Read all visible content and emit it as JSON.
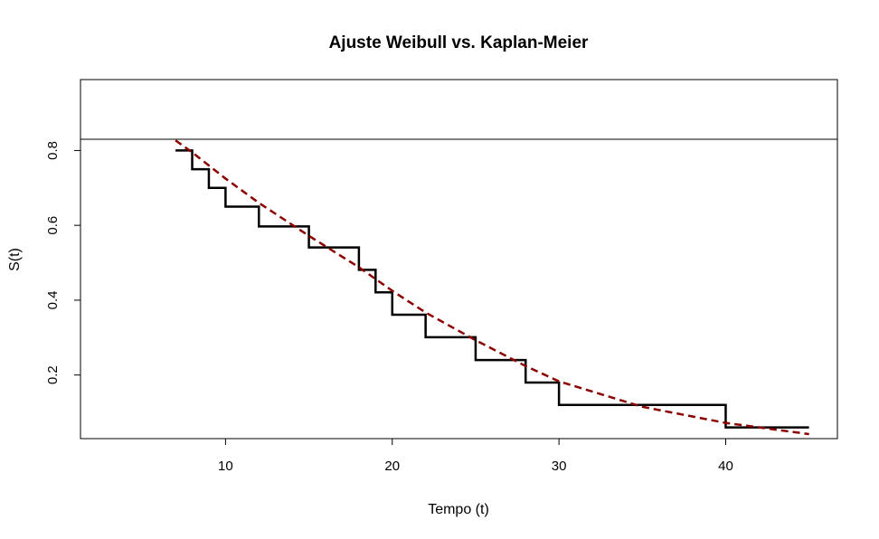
{
  "chart_data": {
    "type": "line",
    "title": "Ajuste Weibull vs. Kaplan-Meier",
    "xlabel": "Tempo (t)",
    "ylabel": "S(t)",
    "xlim": [
      1.3,
      46.7
    ],
    "ylim": [
      0.03,
      0.83
    ],
    "xticks": [
      10,
      20,
      30,
      40
    ],
    "yticks": [
      0.2,
      0.4,
      0.6,
      0.8
    ],
    "grid": false,
    "legend": "none",
    "series": [
      {
        "style": "step",
        "color": "#000000",
        "x": [
          7,
          8,
          9,
          10,
          12,
          15,
          18,
          19,
          20,
          22,
          25,
          28,
          30,
          40,
          45
        ],
        "y": [
          0.8,
          0.75,
          0.7,
          0.65,
          0.597,
          0.541,
          0.481,
          0.421,
          0.361,
          0.301,
          0.24,
          0.18,
          0.12,
          0.06,
          0.06
        ]
      },
      {
        "style": "dashed",
        "color": "#8b0000",
        "x": [
          7,
          8,
          10,
          12,
          15,
          18,
          20,
          22,
          25,
          28,
          30,
          35,
          40,
          45
        ],
        "y": [
          0.827,
          0.795,
          0.725,
          0.66,
          0.572,
          0.488,
          0.425,
          0.367,
          0.293,
          0.224,
          0.183,
          0.115,
          0.072,
          0.042
        ]
      }
    ]
  }
}
